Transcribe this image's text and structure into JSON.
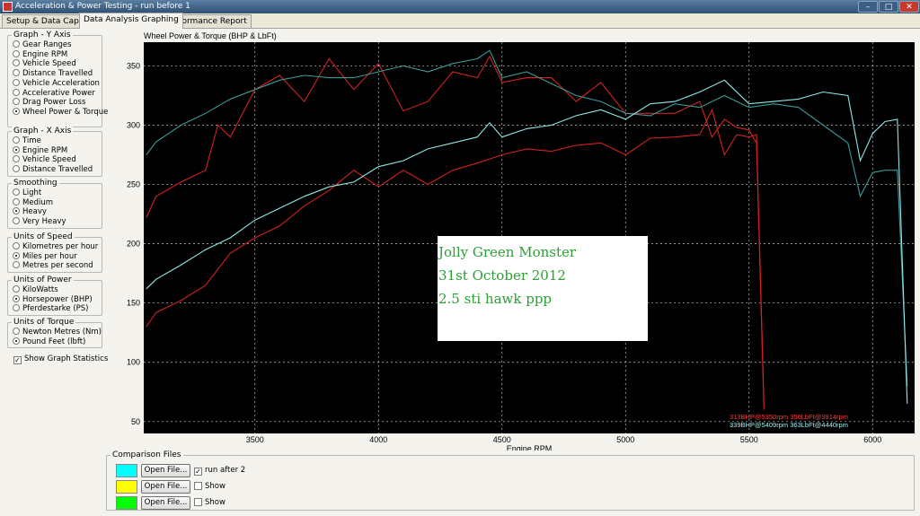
{
  "window": {
    "title": "Acceleration & Power Testing - run before 1",
    "min_label": "–",
    "max_label": "□",
    "close_label": "✕"
  },
  "tabs": [
    "Setup & Data Capture",
    "Data Analysis Graphing",
    "Performance Report"
  ],
  "groups": {
    "yaxis": {
      "title": "Graph - Y Axis",
      "options": [
        "Gear Ranges",
        "Engine RPM",
        "Vehicle Speed",
        "Distance Travelled",
        "Vehicle Acceleration",
        "Accelerative Power",
        "Drag Power Loss",
        "Wheel Power & Torque"
      ],
      "selected": 7
    },
    "xaxis": {
      "title": "Graph - X Axis",
      "options": [
        "Time",
        "Engine RPM",
        "Vehicle Speed",
        "Distance Travelled"
      ],
      "selected": 1
    },
    "smoothing": {
      "title": "Smoothing",
      "options": [
        "Light",
        "Medium",
        "Heavy",
        "Very Heavy"
      ],
      "selected": 2
    },
    "speed": {
      "title": "Units of Speed",
      "options": [
        "Kilometres per hour",
        "Miles per hour",
        "Metres per second"
      ],
      "selected": 1
    },
    "power": {
      "title": "Units of Power",
      "options": [
        "KiloWatts",
        "Horsepower (BHP)",
        "Pferdestarke (PS)"
      ],
      "selected": 1
    },
    "torque": {
      "title": "Units of Torque",
      "options": [
        "Newton Metres (Nm)",
        "Pound Feet (lbft)"
      ],
      "selected": 1
    }
  },
  "show_stats": {
    "label": "Show Graph Statistics",
    "checked": true
  },
  "comparison": {
    "title": "Comparison Files",
    "rows": [
      {
        "color": "#00ffff",
        "button": "Open File...",
        "check_label": "run after 2",
        "checked": true
      },
      {
        "color": "#ffff00",
        "button": "Open File...",
        "check_label": "Show",
        "checked": false
      },
      {
        "color": "#00ff00",
        "button": "Open File...",
        "check_label": "Show",
        "checked": false
      }
    ]
  },
  "watermark": {
    "lines": [
      "Jolly Green Monster",
      "31st October 2012",
      "2.5 sti hawk ppp"
    ]
  },
  "chart_data": {
    "type": "line",
    "title": "Wheel Power & Torque (BHP & LbFt)",
    "xlabel": "Engine RPM",
    "ylabel": "",
    "xlim": [
      3050,
      6170
    ],
    "ylim": [
      40,
      370
    ],
    "xticks": [
      3500,
      4000,
      4500,
      5000,
      5500,
      6000
    ],
    "yticks": [
      50,
      100,
      150,
      200,
      250,
      300,
      350
    ],
    "grid": true,
    "legend": "none",
    "series": [
      {
        "id": "red_torque",
        "color": "#d42020",
        "x": [
          3060,
          3100,
          3200,
          3300,
          3350,
          3400,
          3500,
          3600,
          3700,
          3800,
          3900,
          4000,
          4100,
          4200,
          4300,
          4400,
          4450,
          4500,
          4600,
          4700,
          4800,
          4900,
          5000,
          5100,
          5200,
          5300,
          5350,
          5400,
          5450,
          5500,
          5530,
          5560
        ],
        "y": [
          222,
          240,
          252,
          262,
          300,
          290,
          330,
          342,
          320,
          356,
          330,
          352,
          312,
          320,
          345,
          340,
          358,
          336,
          340,
          340,
          320,
          336,
          310,
          310,
          310,
          320,
          290,
          305,
          298,
          296,
          285,
          60
        ]
      },
      {
        "id": "red_power",
        "color": "#d42020",
        "x": [
          3060,
          3100,
          3200,
          3300,
          3400,
          3500,
          3600,
          3700,
          3800,
          3900,
          4000,
          4100,
          4200,
          4300,
          4400,
          4500,
          4600,
          4700,
          4800,
          4900,
          5000,
          5100,
          5200,
          5300,
          5350,
          5400,
          5450,
          5500,
          5530,
          5560
        ],
        "y": [
          130,
          142,
          152,
          165,
          192,
          205,
          215,
          232,
          245,
          262,
          248,
          262,
          250,
          262,
          268,
          275,
          280,
          278,
          283,
          285,
          275,
          289,
          290,
          292,
          313,
          275,
          292,
          290,
          292,
          65
        ]
      },
      {
        "id": "cyan_torque",
        "color": "#3a9a9a",
        "x": [
          3060,
          3100,
          3200,
          3300,
          3400,
          3500,
          3600,
          3700,
          3800,
          3900,
          4000,
          4100,
          4200,
          4300,
          4400,
          4450,
          4500,
          4600,
          4700,
          4800,
          4900,
          5000,
          5100,
          5200,
          5300,
          5400,
          5500,
          5600,
          5700,
          5800,
          5900,
          5950,
          6000,
          6050,
          6100,
          6140
        ],
        "y": [
          275,
          286,
          300,
          310,
          322,
          330,
          338,
          342,
          340,
          340,
          345,
          350,
          345,
          352,
          356,
          363,
          340,
          345,
          335,
          325,
          320,
          310,
          308,
          318,
          315,
          325,
          315,
          318,
          315,
          300,
          285,
          240,
          260,
          262,
          262,
          80
        ]
      },
      {
        "id": "cyan_power",
        "color": "#8fe8e8",
        "x": [
          3060,
          3100,
          3200,
          3300,
          3400,
          3500,
          3600,
          3700,
          3800,
          3900,
          4000,
          4100,
          4200,
          4300,
          4400,
          4450,
          4500,
          4600,
          4700,
          4800,
          4900,
          5000,
          5100,
          5200,
          5300,
          5400,
          5500,
          5600,
          5700,
          5800,
          5900,
          5950,
          6000,
          6050,
          6100,
          6140
        ],
        "y": [
          162,
          170,
          182,
          195,
          205,
          220,
          230,
          240,
          248,
          252,
          265,
          270,
          280,
          285,
          290,
          302,
          290,
          297,
          300,
          308,
          313,
          305,
          318,
          320,
          328,
          338,
          318,
          320,
          322,
          328,
          325,
          270,
          293,
          303,
          305,
          65
        ]
      }
    ],
    "stats": [
      {
        "text": "313BHP@5350rpm 356LbFt@3914rpm",
        "color": "#ff3a3a"
      },
      {
        "text": "339BHP@5409rpm 363LbFt@4440rpm",
        "color": "#a0f0f0"
      }
    ]
  }
}
